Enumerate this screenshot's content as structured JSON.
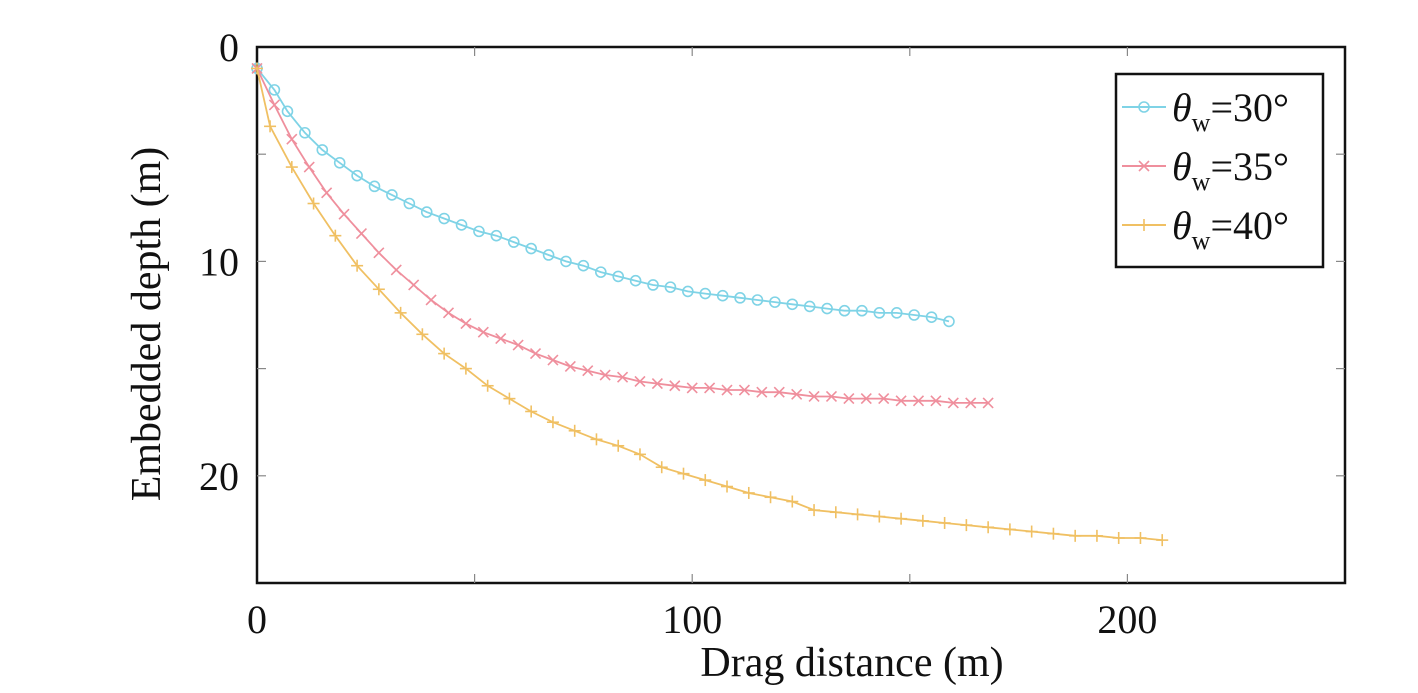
{
  "chart_data": {
    "type": "line",
    "xlabel": "Drag distance (m)",
    "ylabel": "Embedded depth (m)",
    "xlim": [
      0,
      250
    ],
    "ylim": [
      0,
      25
    ],
    "y_inverted": true,
    "grid": false,
    "legend_position": "top-right",
    "x_ticks": [
      0,
      100,
      200
    ],
    "x_minor_ticks": [
      50,
      150
    ],
    "y_ticks": [
      0,
      10,
      20
    ],
    "y_minor_ticks": [
      5,
      15
    ],
    "series": [
      {
        "legend_symbol": "θ",
        "legend_subscript": "w",
        "legend_value": "=30°",
        "marker": "circle",
        "color": "#7fd3e6",
        "x": [
          0,
          4,
          7,
          11,
          15,
          19,
          23,
          27,
          31,
          35,
          39,
          43,
          47,
          51,
          55,
          59,
          63,
          67,
          71,
          75,
          79,
          83,
          87,
          91,
          95,
          99,
          103,
          107,
          111,
          115,
          119,
          123,
          127,
          131,
          135,
          139,
          143,
          147,
          151,
          155,
          159
        ],
        "y": [
          1.0,
          2.0,
          3.0,
          4.0,
          4.8,
          5.4,
          6.0,
          6.5,
          6.9,
          7.3,
          7.7,
          8.0,
          8.3,
          8.6,
          8.8,
          9.1,
          9.4,
          9.7,
          10.0,
          10.2,
          10.5,
          10.7,
          10.9,
          11.1,
          11.2,
          11.4,
          11.5,
          11.6,
          11.7,
          11.8,
          11.9,
          12.0,
          12.1,
          12.2,
          12.3,
          12.3,
          12.4,
          12.4,
          12.5,
          12.6,
          12.8
        ]
      },
      {
        "legend_symbol": "θ",
        "legend_subscript": "w",
        "legend_value": "=35°",
        "marker": "x",
        "color": "#ef8f9d",
        "x": [
          0,
          4,
          8,
          12,
          16,
          20,
          24,
          28,
          32,
          36,
          40,
          44,
          48,
          52,
          56,
          60,
          64,
          68,
          72,
          76,
          80,
          84,
          88,
          92,
          96,
          100,
          104,
          108,
          112,
          116,
          120,
          124,
          128,
          132,
          136,
          140,
          144,
          148,
          152,
          156,
          160,
          164,
          168
        ],
        "y": [
          1.0,
          2.7,
          4.3,
          5.6,
          6.8,
          7.8,
          8.7,
          9.6,
          10.4,
          11.1,
          11.8,
          12.4,
          12.9,
          13.3,
          13.6,
          13.9,
          14.3,
          14.6,
          14.9,
          15.1,
          15.3,
          15.4,
          15.6,
          15.7,
          15.8,
          15.9,
          15.9,
          16.0,
          16.0,
          16.1,
          16.1,
          16.2,
          16.3,
          16.3,
          16.4,
          16.4,
          16.4,
          16.5,
          16.5,
          16.5,
          16.6,
          16.6,
          16.6
        ]
      },
      {
        "legend_symbol": "θ",
        "legend_subscript": "w",
        "legend_value": "=40°",
        "marker": "plus",
        "color": "#f0c063",
        "x": [
          0,
          3,
          8,
          13,
          18,
          23,
          28,
          33,
          38,
          43,
          48,
          53,
          58,
          63,
          68,
          73,
          78,
          83,
          88,
          93,
          98,
          103,
          108,
          113,
          118,
          123,
          128,
          133,
          138,
          143,
          148,
          153,
          158,
          163,
          168,
          173,
          178,
          183,
          188,
          193,
          198,
          203,
          208
        ],
        "y": [
          1.0,
          3.7,
          5.6,
          7.3,
          8.8,
          10.2,
          11.3,
          12.4,
          13.4,
          14.3,
          15.0,
          15.8,
          16.4,
          17.0,
          17.5,
          17.9,
          18.3,
          18.6,
          19.0,
          19.6,
          19.9,
          20.2,
          20.5,
          20.8,
          21.0,
          21.2,
          21.6,
          21.7,
          21.8,
          21.9,
          22.0,
          22.1,
          22.2,
          22.3,
          22.4,
          22.5,
          22.6,
          22.7,
          22.8,
          22.8,
          22.9,
          22.9,
          23.0
        ]
      }
    ]
  }
}
